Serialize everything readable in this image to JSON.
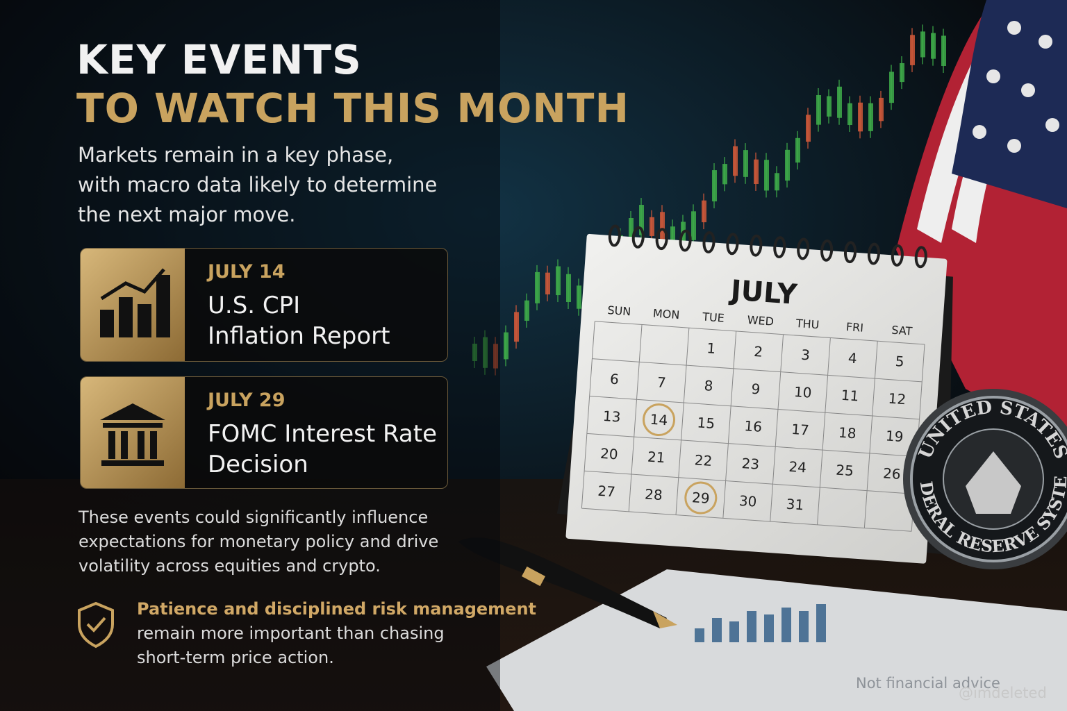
{
  "header": {
    "title_line1": "KEY EVENTS",
    "title_line2": "TO WATCH THIS MONTH"
  },
  "intro": {
    "lines": [
      "Markets remain in a key phase,",
      "with macro data likely to determine",
      "the next major move."
    ]
  },
  "events": [
    {
      "date": "JULY 14",
      "title_lines": [
        "U.S. CPI",
        "Inflation Report"
      ]
    },
    {
      "date": "JULY 29",
      "title_lines": [
        "FOMC Interest Rate",
        "Decision"
      ]
    }
  ],
  "body": {
    "lines": [
      "These events could significantly influence",
      "expectations for monetary policy and drive",
      "volatility across equities and crypto."
    ]
  },
  "callout": {
    "highlight": "Patience and disciplined risk management",
    "lines": [
      "remain more important than chasing",
      "short-term price action."
    ]
  },
  "calendar": {
    "month": "JULY",
    "weekdays": [
      "SUN",
      "MON",
      "TUE",
      "WED",
      "THU",
      "FRI",
      "SAT"
    ],
    "days": [
      1,
      2,
      3,
      4,
      5,
      6,
      7,
      8,
      9,
      10,
      11,
      12,
      13,
      14,
      15,
      16,
      17,
      18,
      19,
      20,
      21,
      22,
      23,
      24,
      25,
      26,
      27,
      28,
      29,
      30,
      31
    ]
  },
  "seal": {
    "top": "UNITED STATES",
    "bottom": "FEDERAL RESERVE SYSTEM"
  },
  "footer": {
    "disclaimer": "Not financial advice",
    "handle": "@imdeleted"
  }
}
